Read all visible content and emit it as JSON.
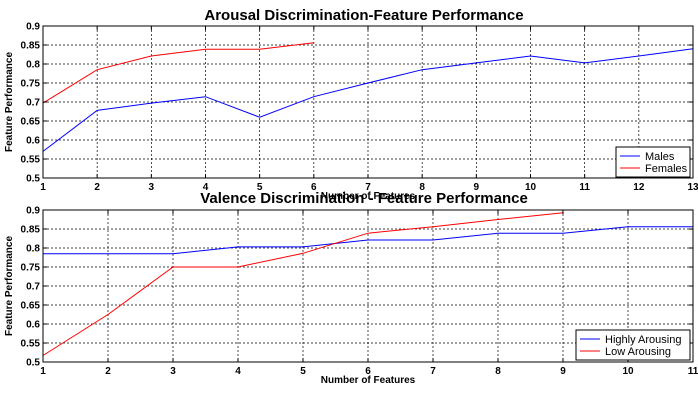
{
  "chart_data": [
    {
      "type": "line",
      "title": "Arousal Discrimination-Feature Performance",
      "xlabel": "Number of Features",
      "ylabel": "Feature Performance",
      "xlim": [
        1,
        13
      ],
      "ylim": [
        0.5,
        0.9
      ],
      "xticks": [
        "1",
        "2",
        "3",
        "4",
        "5",
        "6",
        "7",
        "8",
        "9",
        "10",
        "11",
        "12",
        "13"
      ],
      "yticks": [
        "0.5",
        "0.55",
        "0.6",
        "0.65",
        "0.7",
        "0.75",
        "0.8",
        "0.85",
        "0.9"
      ],
      "grid": true,
      "legend_position": "bottom-right",
      "series": [
        {
          "name": "Males",
          "color": "#0000ff",
          "x": [
            1,
            2,
            3,
            4,
            5,
            6,
            7,
            8,
            9,
            10,
            11,
            12,
            13
          ],
          "values": [
            0.57,
            0.678,
            0.697,
            0.714,
            0.66,
            0.714,
            0.75,
            0.785,
            0.803,
            0.821,
            0.803,
            0.821,
            0.84
          ]
        },
        {
          "name": "Females",
          "color": "#ff0000",
          "x": [
            1,
            2,
            3,
            4,
            5,
            6
          ],
          "values": [
            0.697,
            0.785,
            0.821,
            0.839,
            0.839,
            0.856
          ]
        }
      ]
    },
    {
      "type": "line",
      "title": "Valence Discrimination - Feature Performance",
      "xlabel": "Number of Features",
      "ylabel": "Feature Performance",
      "xlim": [
        1,
        11
      ],
      "ylim": [
        0.5,
        0.9
      ],
      "xticks": [
        "1",
        "2",
        "3",
        "4",
        "5",
        "6",
        "7",
        "8",
        "9",
        "10",
        "11"
      ],
      "yticks": [
        "0.5",
        "0.55",
        "0.6",
        "0.65",
        "0.7",
        "0.75",
        "0.8",
        "0.85",
        "0.9"
      ],
      "grid": true,
      "legend_position": "bottom-right",
      "series": [
        {
          "name": "Highly Arousing",
          "color": "#0000ff",
          "x": [
            1,
            2,
            3,
            4,
            5,
            6,
            7,
            8,
            9,
            10,
            11
          ],
          "values": [
            0.785,
            0.785,
            0.785,
            0.803,
            0.803,
            0.821,
            0.821,
            0.839,
            0.839,
            0.856,
            0.856
          ]
        },
        {
          "name": "Low Arousing",
          "color": "#ff0000",
          "x": [
            1,
            2,
            3,
            4,
            5,
            6,
            7,
            8,
            9
          ],
          "values": [
            0.517,
            0.625,
            0.75,
            0.75,
            0.786,
            0.839,
            0.856,
            0.875,
            0.893
          ]
        }
      ]
    }
  ]
}
